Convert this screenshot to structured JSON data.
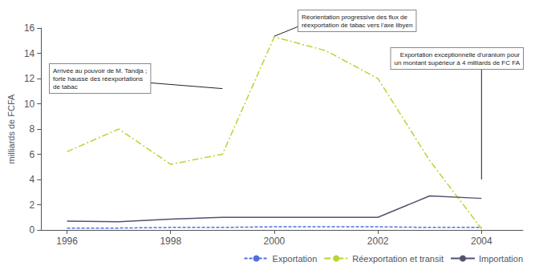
{
  "chart_data": {
    "type": "line",
    "x": [
      1996,
      1997,
      1998,
      1999,
      2000,
      2001,
      2002,
      2003,
      2004
    ],
    "series": [
      {
        "name": "Exportation",
        "values": [
          0.15,
          0.15,
          0.2,
          0.2,
          0.25,
          0.25,
          0.25,
          0.2,
          0.2
        ],
        "line_style": "dashed"
      },
      {
        "name": "Réexportation et transit",
        "values": [
          6.2,
          8.0,
          5.2,
          6.0,
          15.3,
          14.2,
          12.0,
          5.5,
          0.1
        ],
        "line_style": "dashdot"
      },
      {
        "name": "Importation",
        "values": [
          0.7,
          0.65,
          0.85,
          1.0,
          1.0,
          1.0,
          1.0,
          2.7,
          2.5
        ],
        "line_style": "solid"
      }
    ],
    "ylabel": "milliards de FCFA",
    "xlim": [
      1995.5,
      2004.8
    ],
    "xticks": [
      1996,
      1998,
      2000,
      2002,
      2004
    ],
    "ylim": [
      0,
      16
    ],
    "yticks": [
      0,
      2,
      4,
      6,
      8,
      10,
      12,
      14,
      16
    ],
    "grid": false,
    "legend": "lower right",
    "annotations": [
      {
        "text": "Arrivée au pouvoir de M. Tandja ;\nforte hausse des réexportations\nde tabac",
        "x": 1999,
        "y": 11.2
      },
      {
        "text": "Réorientation progressive des flux de\nréexportation de tabac vers l'axe libyen",
        "x": 2000,
        "y": 15.35
      },
      {
        "text": "Exportation exceptionnelle d'uranium pour\nun montant supérieur à 4 milliards de FC FA",
        "x": 2004,
        "y": 4
      }
    ]
  }
}
